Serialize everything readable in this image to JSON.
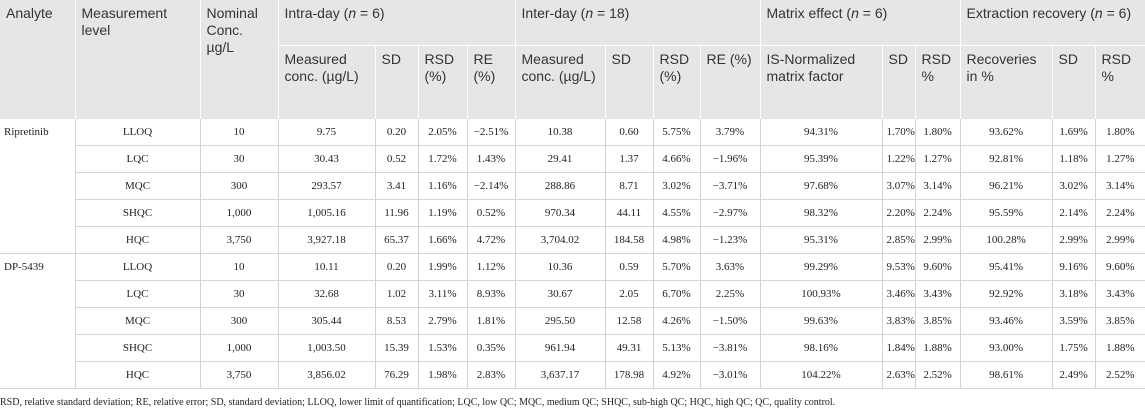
{
  "table": {
    "header_top": [
      {
        "text": "Analyte"
      },
      {
        "text": "Measurement level"
      },
      {
        "text": "Nominal Conc. µg/L"
      },
      {
        "pre": "Intra-day (",
        "var": "n",
        "post": " = 6)"
      },
      {
        "pre": "Inter-day (",
        "var": "n",
        "post": " = 18)"
      },
      {
        "pre": "Matrix effect (",
        "var": "n",
        "post": " = 6)"
      },
      {
        "pre": "Extraction recovery (",
        "var": "n",
        "post": " = 6)"
      }
    ],
    "header_sub": [
      "Measured conc. (µg/L)",
      "SD",
      "RSD (%)",
      "RE (%)",
      "Measured conc. (µg/L)",
      "SD",
      "RSD (%)",
      "RE (%)",
      "IS-Normalized matrix factor",
      "SD",
      "RSD %",
      "Recoveries in %",
      "SD",
      "RSD %"
    ],
    "groups": [
      {
        "analyte": "Ripretinib",
        "rows": [
          [
            "LLOQ",
            "10",
            "9.75",
            "0.20",
            "2.05%",
            "−2.51%",
            "10.38",
            "0.60",
            "5.75%",
            "3.79%",
            "94.31%",
            "1.70%",
            "1.80%",
            "93.62%",
            "1.69%",
            "1.80%"
          ],
          [
            "LQC",
            "30",
            "30.43",
            "0.52",
            "1.72%",
            "1.43%",
            "29.41",
            "1.37",
            "4.66%",
            "−1.96%",
            "95.39%",
            "1.22%",
            "1.27%",
            "92.81%",
            "1.18%",
            "1.27%"
          ],
          [
            "MQC",
            "300",
            "293.57",
            "3.41",
            "1.16%",
            "−2.14%",
            "288.86",
            "8.71",
            "3.02%",
            "−3.71%",
            "97.68%",
            "3.07%",
            "3.14%",
            "96.21%",
            "3.02%",
            "3.14%"
          ],
          [
            "SHQC",
            "1,000",
            "1,005.16",
            "11.96",
            "1.19%",
            "0.52%",
            "970.34",
            "44.11",
            "4.55%",
            "−2.97%",
            "98.32%",
            "2.20%",
            "2.24%",
            "95.59%",
            "2.14%",
            "2.24%"
          ],
          [
            "HQC",
            "3,750",
            "3,927.18",
            "65.37",
            "1.66%",
            "4.72%",
            "3,704.02",
            "184.58",
            "4.98%",
            "−1.23%",
            "95.31%",
            "2.85%",
            "2.99%",
            "100.28%",
            "2.99%",
            "2.99%"
          ]
        ]
      },
      {
        "analyte": "DP-5439",
        "rows": [
          [
            "LLOQ",
            "10",
            "10.11",
            "0.20",
            "1.99%",
            "1.12%",
            "10.36",
            "0.59",
            "5.70%",
            "3.63%",
            "99.29%",
            "9.53%",
            "9.60%",
            "95.41%",
            "9.16%",
            "9.60%"
          ],
          [
            "LQC",
            "30",
            "32.68",
            "1.02",
            "3.11%",
            "8.93%",
            "30.67",
            "2.05",
            "6.70%",
            "2.25%",
            "100.93%",
            "3.46%",
            "3.43%",
            "92.92%",
            "3.18%",
            "3.43%"
          ],
          [
            "MQC",
            "300",
            "305.44",
            "8.53",
            "2.79%",
            "1.81%",
            "295.50",
            "12.58",
            "4.26%",
            "−1.50%",
            "99.63%",
            "3.83%",
            "3.85%",
            "93.46%",
            "3.59%",
            "3.85%"
          ],
          [
            "SHQC",
            "1,000",
            "1,003.50",
            "15.39",
            "1.53%",
            "0.35%",
            "961.94",
            "49.31",
            "5.13%",
            "−3.81%",
            "98.16%",
            "1.84%",
            "1.88%",
            "93.00%",
            "1.75%",
            "1.88%"
          ],
          [
            "HQC",
            "3,750",
            "3,856.02",
            "76.29",
            "1.98%",
            "2.83%",
            "3,637.17",
            "178.98",
            "4.92%",
            "−3.01%",
            "104.22%",
            "2.63%",
            "2.52%",
            "98.61%",
            "2.49%",
            "2.52%"
          ]
        ]
      }
    ],
    "footnote": "RSD, relative standard deviation; RE, relative error; SD, standard deviation; LLOQ, lower limit of quantification; LQC, low QC; MQC, medium QC; SHQC, sub-high QC; HQC, high QC; QC, quality control."
  }
}
